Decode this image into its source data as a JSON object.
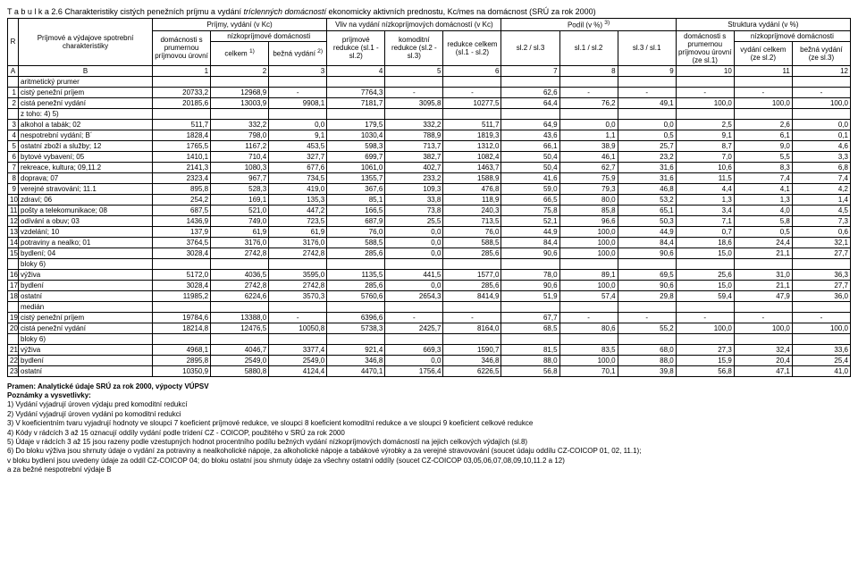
{
  "title_prefix": "T a b u l k a  2.6 ",
  "title_main": "Charakteristiky cistých penežních príjmu a vydání ",
  "title_italic": "tríclenných domácností",
  "title_suffix": " ekonomicky aktivních prednostu, Kc/mes na domácnost (SRÚ za rok 2000)",
  "headers": {
    "r": "R",
    "char": "Príjmové a výdajove spotrební charakteristiky",
    "group_a": "Príjmy, vydání (v Kc)",
    "group_b": "Vliv na vydání nízkopríjmových domácností (v Kc)",
    "group_c": "Podíl (v %) ",
    "group_c_sup": "3)",
    "group_d": "Struktura vydání (v %)",
    "sub_a1": "domácnosti s prumernou príjmovou úrovní",
    "sub_a2_top": "nízkopríjmové domácnosti",
    "sub_a2a": "celkem ",
    "sub_a2a_sup": "1)",
    "sub_a2b": "bežná vydání ",
    "sub_a2b_sup": "2)",
    "sub_b1": "príjmové redukce (sl.1 - sl.2)",
    "sub_b2": "komoditní redukce (sl.2 - sl.3)",
    "sub_b3": "redukce celkem (sl.1 - sl.2)",
    "sub_c1": "sl.2 / sl.3",
    "sub_c2": "sl.1 / sl.2",
    "sub_c3": "sl.3 / sl.1",
    "sub_d1": "domácnosti s prumernou príjmovou úrovní (ze sl.1)",
    "sub_d2_top": "nízkopríjmové domácnosti",
    "sub_d2a": "vydání celkem (ze sl.2)",
    "sub_d2b": "bežná vydání (ze sl.3)"
  },
  "col_nums": [
    "A",
    "B",
    "1",
    "2",
    "3",
    "4",
    "5",
    "6",
    "7",
    "8",
    "9",
    "10",
    "11",
    "12"
  ],
  "rows": [
    {
      "r": "",
      "label": "aritmetický prumer",
      "vals": [
        "",
        "",
        "",
        "",
        "",
        "",
        "",
        "",
        "",
        "",
        "",
        ""
      ]
    },
    {
      "r": "1",
      "label": "cistý penežní príjem",
      "vals": [
        "20733,2",
        "12968,9",
        "-",
        "7764,3",
        "-",
        "-",
        "62,6",
        "-",
        "-",
        "-",
        "-",
        "-"
      ]
    },
    {
      "r": "2",
      "label": "cistá penežní vydání",
      "vals": [
        "20185,6",
        "13003,9",
        "9908,1",
        "7181,7",
        "3095,8",
        "10277,5",
        "64,4",
        "76,2",
        "49,1",
        "100,0",
        "100,0",
        "100,0"
      ]
    },
    {
      "r": "",
      "label": "z toho: 4) 5)",
      "vals": [
        "",
        "",
        "",
        "",
        "",
        "",
        "",
        "",
        "",
        "",
        "",
        ""
      ]
    },
    {
      "r": "3",
      "label": "alkohol a tabák; 02",
      "vals": [
        "511,7",
        "332,2",
        "0,0",
        "179,5",
        "332,2",
        "511,7",
        "64,9",
        "0,0",
        "0,0",
        "2,5",
        "2,6",
        "0,0"
      ]
    },
    {
      "r": "4",
      "label": "nespotrební vydání; B´",
      "vals": [
        "1828,4",
        "798,0",
        "9,1",
        "1030,4",
        "788,9",
        "1819,3",
        "43,6",
        "1,1",
        "0,5",
        "9,1",
        "6,1",
        "0,1"
      ]
    },
    {
      "r": "5",
      "label": "ostatní zboží a služby; 12",
      "vals": [
        "1765,5",
        "1167,2",
        "453,5",
        "598,3",
        "713,7",
        "1312,0",
        "66,1",
        "38,9",
        "25,7",
        "8,7",
        "9,0",
        "4,6"
      ]
    },
    {
      "r": "6",
      "label": "bytové vybavení; 05",
      "vals": [
        "1410,1",
        "710,4",
        "327,7",
        "699,7",
        "382,7",
        "1082,4",
        "50,4",
        "46,1",
        "23,2",
        "7,0",
        "5,5",
        "3,3"
      ]
    },
    {
      "r": "7",
      "label": "rekreace, kultura; 09,11.2",
      "vals": [
        "2141,3",
        "1080,3",
        "677,6",
        "1061,0",
        "402,7",
        "1463,7",
        "50,4",
        "62,7",
        "31,6",
        "10,6",
        "8,3",
        "6,8"
      ]
    },
    {
      "r": "8",
      "label": "doprava; 07",
      "vals": [
        "2323,4",
        "967,7",
        "734,5",
        "1355,7",
        "233,2",
        "1588,9",
        "41,6",
        "75,9",
        "31,6",
        "11,5",
        "7,4",
        "7,4"
      ]
    },
    {
      "r": "9",
      "label": "verejné stravování; 11.1",
      "vals": [
        "895,8",
        "528,3",
        "419,0",
        "367,6",
        "109,3",
        "476,8",
        "59,0",
        "79,3",
        "46,8",
        "4,4",
        "4,1",
        "4,2"
      ]
    },
    {
      "r": "10",
      "label": "zdraví; 06",
      "vals": [
        "254,2",
        "169,1",
        "135,3",
        "85,1",
        "33,8",
        "118,9",
        "66,5",
        "80,0",
        "53,2",
        "1,3",
        "1,3",
        "1,4"
      ]
    },
    {
      "r": "11",
      "label": "pošty a telekomunikace; 08",
      "vals": [
        "687,5",
        "521,0",
        "447,2",
        "166,5",
        "73,8",
        "240,3",
        "75,8",
        "85,8",
        "65,1",
        "3,4",
        "4,0",
        "4,5"
      ]
    },
    {
      "r": "12",
      "label": "odívání a obuv; 03",
      "vals": [
        "1436,9",
        "749,0",
        "723,5",
        "687,9",
        "25,5",
        "713,5",
        "52,1",
        "96,6",
        "50,3",
        "7,1",
        "5,8",
        "7,3"
      ]
    },
    {
      "r": "13",
      "label": "vzdelání; 10",
      "vals": [
        "137,9",
        "61,9",
        "61,9",
        "76,0",
        "0,0",
        "76,0",
        "44,9",
        "100,0",
        "44,9",
        "0,7",
        "0,5",
        "0,6"
      ]
    },
    {
      "r": "14",
      "label": "potraviny a nealko; 01",
      "vals": [
        "3764,5",
        "3176,0",
        "3176,0",
        "588,5",
        "0,0",
        "588,5",
        "84,4",
        "100,0",
        "84,4",
        "18,6",
        "24,4",
        "32,1"
      ]
    },
    {
      "r": "15",
      "label": "bydlení; 04",
      "vals": [
        "3028,4",
        "2742,8",
        "2742,8",
        "285,6",
        "0,0",
        "285,6",
        "90,6",
        "100,0",
        "90,6",
        "15,0",
        "21,1",
        "27,7"
      ]
    },
    {
      "r": "",
      "label": "bloky 6)",
      "vals": [
        "",
        "",
        "",
        "",
        "",
        "",
        "",
        "",
        "",
        "",
        "",
        ""
      ]
    },
    {
      "r": "16",
      "label": "výživa",
      "vals": [
        "5172,0",
        "4036,5",
        "3595,0",
        "1135,5",
        "441,5",
        "1577,0",
        "78,0",
        "89,1",
        "69,5",
        "25,6",
        "31,0",
        "36,3"
      ]
    },
    {
      "r": "17",
      "label": "bydlení",
      "vals": [
        "3028,4",
        "2742,8",
        "2742,8",
        "285,6",
        "0,0",
        "285,6",
        "90,6",
        "100,0",
        "90,6",
        "15,0",
        "21,1",
        "27,7"
      ]
    },
    {
      "r": "18",
      "label": "ostatní",
      "vals": [
        "11985,2",
        "6224,6",
        "3570,3",
        "5760,6",
        "2654,3",
        "8414,9",
        "51,9",
        "57,4",
        "29,8",
        "59,4",
        "47,9",
        "36,0"
      ]
    },
    {
      "r": "",
      "label": "medián",
      "vals": [
        "",
        "",
        "",
        "",
        "",
        "",
        "",
        "",
        "",
        "",
        "",
        ""
      ]
    },
    {
      "r": "19",
      "label": "cistý penežní príjem",
      "vals": [
        "19784,6",
        "13388,0",
        "-",
        "6396,6",
        "-",
        "-",
        "67,7",
        "-",
        "-",
        "-",
        "-",
        "-"
      ]
    },
    {
      "r": "20",
      "label": "cistá penežní vydání",
      "vals": [
        "18214,8",
        "12476,5",
        "10050,8",
        "5738,3",
        "2425,7",
        "8164,0",
        "68,5",
        "80,6",
        "55,2",
        "100,0",
        "100,0",
        "100,0"
      ]
    },
    {
      "r": "",
      "label": "bloky 6)",
      "vals": [
        "",
        "",
        "",
        "",
        "",
        "",
        "",
        "",
        "",
        "",
        "",
        ""
      ]
    },
    {
      "r": "21",
      "label": "výživa",
      "vals": [
        "4968,1",
        "4046,7",
        "3377,4",
        "921,4",
        "669,3",
        "1590,7",
        "81,5",
        "83,5",
        "68,0",
        "27,3",
        "32,4",
        "33,6"
      ]
    },
    {
      "r": "22",
      "label": "bydlení",
      "vals": [
        "2895,8",
        "2549,0",
        "2549,0",
        "346,8",
        "0,0",
        "346,8",
        "88,0",
        "100,0",
        "88,0",
        "15,9",
        "20,4",
        "25,4"
      ]
    },
    {
      "r": "23",
      "label": "ostatní",
      "vals": [
        "10350,9",
        "5880,8",
        "4124,4",
        "4470,1",
        "1756,4",
        "6226,5",
        "56,8",
        "70,1",
        "39,8",
        "56,8",
        "47,1",
        "41,0"
      ]
    }
  ],
  "footnotes": [
    "Pramen: Analytické údaje SRÚ za rok 2000, výpocty VÚPSV",
    "Poznámky a vysvetlivky:",
    "1) Vydání vyjadrují úroven výdaju pred komoditní redukcí",
    "2) Vydání vyjadrují úroven vydání po komoditní redukci",
    "3) V koeficientním tvaru vyjadrují hodnoty ve sloupci 7 koeficient príjmové redukce, ve sloupci 8 koeficient komoditní redukce a ve sloupci 9 koeficient celkové redukce",
    "4) Kódy v rádcích 3 až 15 oznacují oddíly vydání podle trídení CZ - COICOP, použitého v SRÚ za rok 2000",
    "5) Údaje v rádcích 3 až 15 jsou razeny podle vzestupných hodnot procentního podílu bežných vydání nízkopríjmových domácností na jejich celkových výdajích (sl.8)",
    "6) Do bloku výživa jsou shrnuty údaje o vydání za potraviny a nealkoholické nápoje, za alkoholické nápoje a tabákové výrobky a za verejné stravovování (soucet údaju oddílu CZ-COICOP 01, 02, 11.1);",
    "   v bloku bydlení jsou uvedeny údaje za oddíl CZ-COICOP 04; do bloku ostatní jsou shrnuty údaje za všechny ostatní oddíly (soucet CZ-COICOP 03,05,06,07,08,09,10,11.2 a 12)",
    "a za bežné nespotrební výdaje B"
  ]
}
